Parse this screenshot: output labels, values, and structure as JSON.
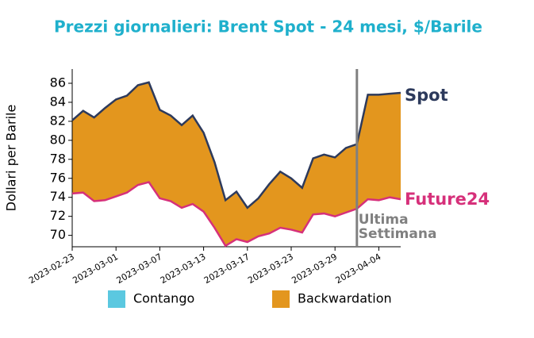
{
  "chart_data": {
    "type": "line",
    "title": "Prezzi giornalieri: Brent Spot - 24 mesi, $/Barile",
    "y_label": "Dollari per Barile",
    "categories": [
      "2023-02-23",
      null,
      null,
      null,
      "2023-03-01",
      null,
      null,
      null,
      "2023-03-07",
      null,
      null,
      null,
      "2023-03-13",
      null,
      null,
      null,
      "2023-03-17",
      null,
      null,
      null,
      "2023-03-23",
      null,
      null,
      null,
      "2023-03-29",
      null,
      null,
      null,
      "2023-04-04",
      null,
      null
    ],
    "series": [
      {
        "name": "Spot",
        "color": "#2d3a5c",
        "values": [
          82.1,
          83.1,
          82.4,
          83.4,
          84.3,
          84.7,
          85.8,
          86.1,
          83.2,
          82.6,
          81.6,
          82.6,
          80.8,
          77.7,
          73.7,
          74.6,
          72.9,
          73.9,
          75.4,
          76.7,
          76.0,
          75.0,
          78.1,
          78.5,
          78.2,
          79.2,
          79.6,
          84.8,
          84.8,
          84.9,
          85.0
        ]
      },
      {
        "name": "Future24",
        "color": "#d6307a",
        "values": [
          74.4,
          74.5,
          73.6,
          73.7,
          74.1,
          74.5,
          75.3,
          75.6,
          73.9,
          73.6,
          72.9,
          73.3,
          72.5,
          70.8,
          68.9,
          69.6,
          69.3,
          69.9,
          70.2,
          70.8,
          70.6,
          70.3,
          72.2,
          72.3,
          72.0,
          72.4,
          72.8,
          73.8,
          73.7,
          74.0,
          73.8
        ]
      }
    ],
    "fill_legend": [
      {
        "name": "Contango",
        "color": "#5bc8e0"
      },
      {
        "name": "Backwardation",
        "color": "#e3961e"
      }
    ],
    "annotation": [
      "Ultima",
      "Settimana"
    ],
    "annotation_color": "#808080",
    "title_color": "#1fb0cc",
    "ylim": [
      68.8,
      87.5
    ],
    "yticks": [
      70,
      72,
      74,
      76,
      78,
      80,
      82,
      84,
      86
    ]
  }
}
